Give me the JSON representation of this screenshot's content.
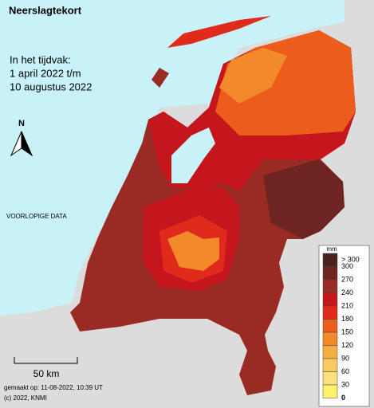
{
  "header": {
    "title": "Neerslagtekort",
    "period": [
      "In het tijdvak:",
      "1 april 2022 t/m",
      "10 augustus 2022"
    ]
  },
  "north": "N",
  "status": "VOORLOPIGE DATA",
  "scale": "50 km",
  "footer": [
    "gemaakt op: 11-08-2022, 10:39 UT",
    "(c) 2022, KNMI"
  ],
  "legend": {
    "unit": "mm",
    "labels": [
      "> 300",
      "300",
      "270",
      "240",
      "210",
      "180",
      "150",
      "120",
      "90",
      "60",
      "30",
      "0"
    ],
    "colors": [
      "#4a221e",
      "#6e2420",
      "#9a2a24",
      "#c4161c",
      "#e02a1c",
      "#ec5c1c",
      "#f28a2c",
      "#f6ae44",
      "#f9cc62",
      "#fbe27c",
      "#fdf26a"
    ]
  }
}
